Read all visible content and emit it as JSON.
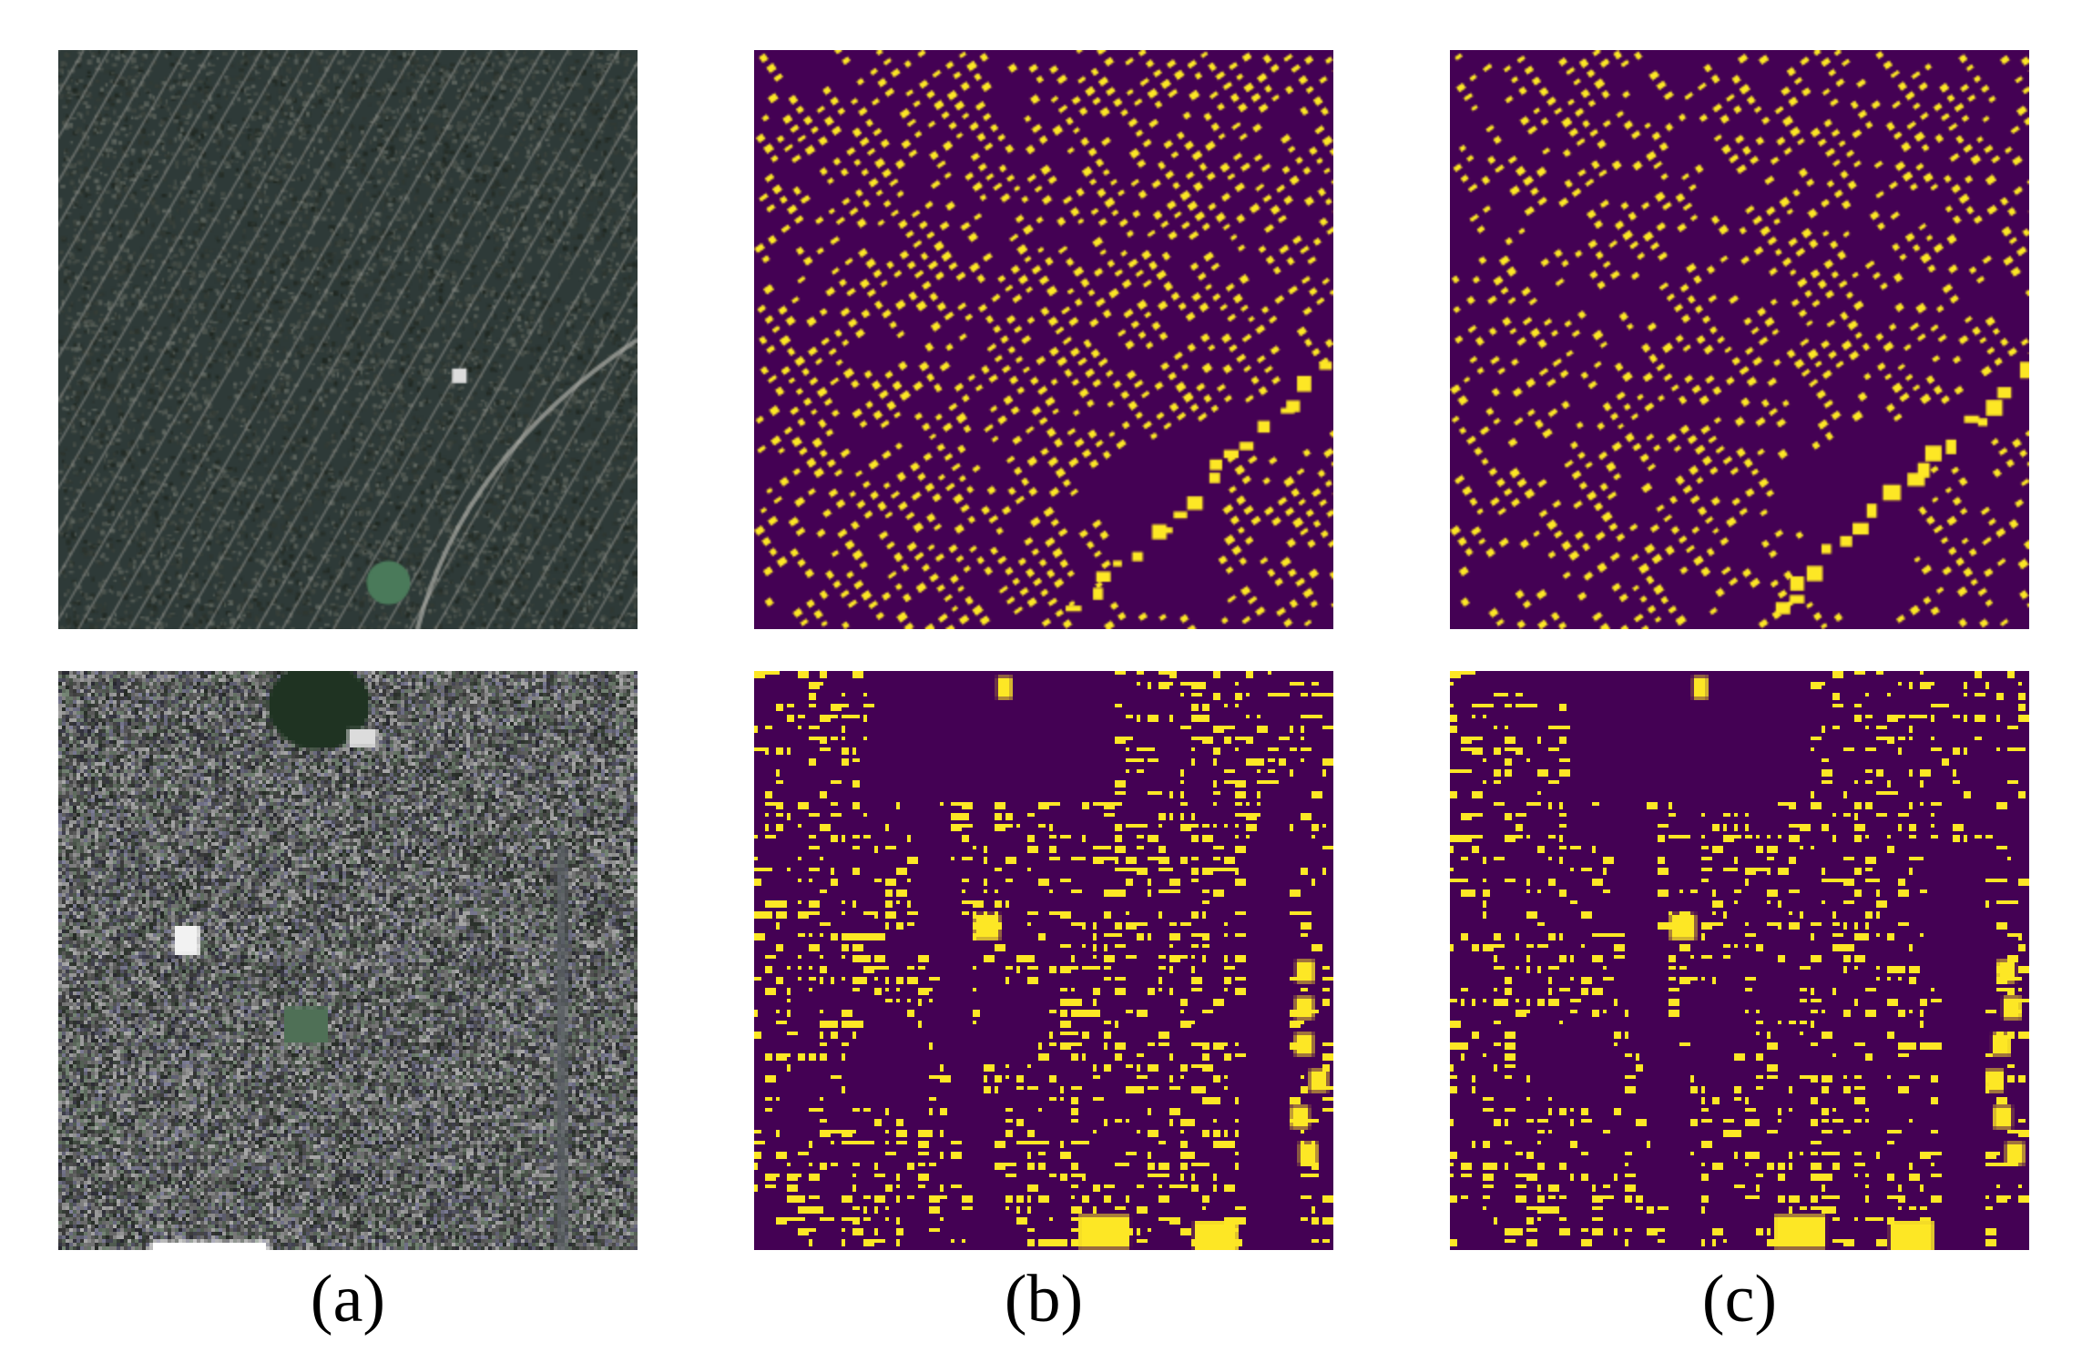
{
  "figure": {
    "columns": [
      {
        "id": "a",
        "label": "(a)",
        "kind": "satellite-rgb"
      },
      {
        "id": "b",
        "label": "(b)",
        "kind": "binary-mask"
      },
      {
        "id": "c",
        "label": "(c)",
        "kind": "binary-mask"
      }
    ],
    "rows": 2,
    "mask_colors": {
      "background": "#440154",
      "building": "#fde725"
    }
  }
}
